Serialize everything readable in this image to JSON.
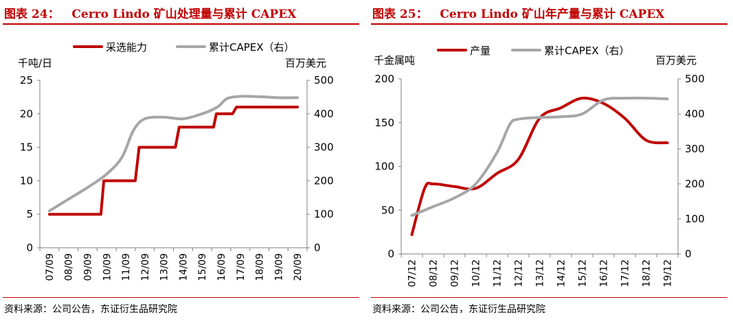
{
  "panels": [
    {
      "title_num": "图表 24：",
      "title_text": "Cerro Lindo 矿山处理量与累计 CAPEX",
      "source": "资料来源：公司公告，东证衍生品研究院"
    },
    {
      "title_num": "图表 25：",
      "title_text": "Cerro Lindo 矿山年产量与累计 CAPEX",
      "source": "资料来源：公司公告，东证衍生品研究院"
    }
  ],
  "colors": {
    "red": "#c00000",
    "gray": "#a6a6a6",
    "axis": "#7f7f7f"
  },
  "chart_data": [
    {
      "type": "line",
      "ylabel_left": "千吨/日",
      "ylabel_right": "百万美元",
      "ylim_left": [
        0,
        25
      ],
      "ylim_right": [
        0,
        500
      ],
      "yticks_left": [
        "0",
        "5",
        "10",
        "15",
        "20",
        "25"
      ],
      "yticks_right": [
        "0",
        "100",
        "200",
        "300",
        "400",
        "500"
      ],
      "categories": [
        "07/09",
        "08/09",
        "09/09",
        "10/09",
        "11/09",
        "12/09",
        "13/09",
        "14/09",
        "15/09",
        "16/09",
        "17/09",
        "18/09",
        "19/09",
        "20/09"
      ],
      "series": [
        {
          "name": "采选能力",
          "axis": "left",
          "points": [
            [
              0,
              5
            ],
            [
              2.7,
              5
            ],
            [
              2.85,
              10
            ],
            [
              4.5,
              10
            ],
            [
              4.7,
              15
            ],
            [
              6.6,
              15
            ],
            [
              6.8,
              18
            ],
            [
              8.6,
              18
            ],
            [
              8.75,
              20
            ],
            [
              9.6,
              20
            ],
            [
              9.8,
              21
            ],
            [
              13,
              21
            ]
          ]
        },
        {
          "name": "累计CAPEX（右）",
          "axis": "right",
          "points": [
            [
              0,
              110
            ],
            [
              1,
              145
            ],
            [
              2,
              180
            ],
            [
              3,
              220
            ],
            [
              3.8,
              270
            ],
            [
              4.4,
              350
            ],
            [
              5,
              385
            ],
            [
              6,
              390
            ],
            [
              7,
              385
            ],
            [
              8,
              400
            ],
            [
              8.8,
              420
            ],
            [
              9.3,
              445
            ],
            [
              10,
              452
            ],
            [
              11,
              451
            ],
            [
              12,
              448
            ],
            [
              13,
              448
            ]
          ]
        }
      ]
    },
    {
      "type": "line",
      "ylabel_left": "千金属吨",
      "ylabel_right": "百万美元",
      "ylim_left": [
        0,
        200
      ],
      "ylim_right": [
        0,
        500
      ],
      "yticks_left": [
        "0",
        "50",
        "100",
        "150",
        "200"
      ],
      "yticks_right": [
        "0",
        "100",
        "200",
        "300",
        "400",
        "500"
      ],
      "categories": [
        "07/12",
        "08/12",
        "09/12",
        "10/12",
        "11/12",
        "12/12",
        "13/12",
        "14/12",
        "15/12",
        "16/12",
        "17/12",
        "18/12",
        "19/12"
      ],
      "series": [
        {
          "name": "产量",
          "axis": "left",
          "points": [
            [
              0,
              22
            ],
            [
              0.6,
              75
            ],
            [
              1,
              80
            ],
            [
              2,
              77
            ],
            [
              3,
              75
            ],
            [
              4,
              92
            ],
            [
              5,
              108
            ],
            [
              6,
              155
            ],
            [
              7,
              167
            ],
            [
              8,
              178
            ],
            [
              9,
              172
            ],
            [
              10,
              155
            ],
            [
              11,
              130
            ],
            [
              12,
              127
            ]
          ]
        },
        {
          "name": "累计CAPEX（右）",
          "axis": "right",
          "points": [
            [
              0,
              110
            ],
            [
              1,
              135
            ],
            [
              2,
              160
            ],
            [
              3,
              200
            ],
            [
              4,
              290
            ],
            [
              4.6,
              370
            ],
            [
              5,
              385
            ],
            [
              6,
              390
            ],
            [
              7,
              392
            ],
            [
              8,
              400
            ],
            [
              9,
              440
            ],
            [
              10,
              445
            ],
            [
              11,
              445
            ],
            [
              12,
              443
            ]
          ]
        }
      ]
    }
  ]
}
